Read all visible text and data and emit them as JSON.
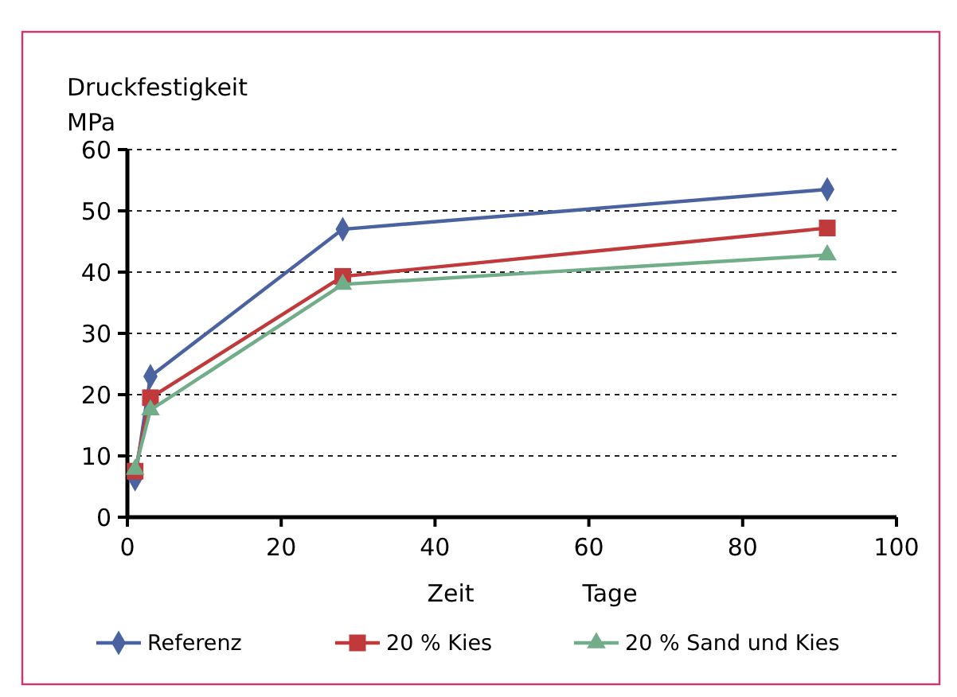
{
  "chart_data": {
    "type": "line",
    "xlabel": "Zeit Tage",
    "ylabel": "Druckfestigkeit MPa",
    "x": [
      1,
      3,
      28,
      91
    ],
    "series": [
      {
        "name": "Referenz",
        "color": "#4a63a0",
        "marker": "diamond",
        "values": [
          6.2,
          23,
          47,
          53.5
        ]
      },
      {
        "name": "20 % Kies",
        "color": "#c0393b",
        "marker": "square",
        "values": [
          7.5,
          19.5,
          39.3,
          47.2
        ]
      },
      {
        "name": "20 % Sand und Kies",
        "color": "#72ad8a",
        "marker": "triangle",
        "values": [
          7.8,
          17.5,
          38,
          42.8
        ]
      }
    ],
    "xlim": [
      0,
      100
    ],
    "xticks": [
      0,
      20,
      40,
      60,
      80,
      100
    ],
    "ylim": [
      0,
      60
    ],
    "yticks": [
      0,
      10,
      20,
      30,
      40,
      50,
      60
    ],
    "grid": "y",
    "legend": "bottom",
    "line_style": "solid"
  }
}
